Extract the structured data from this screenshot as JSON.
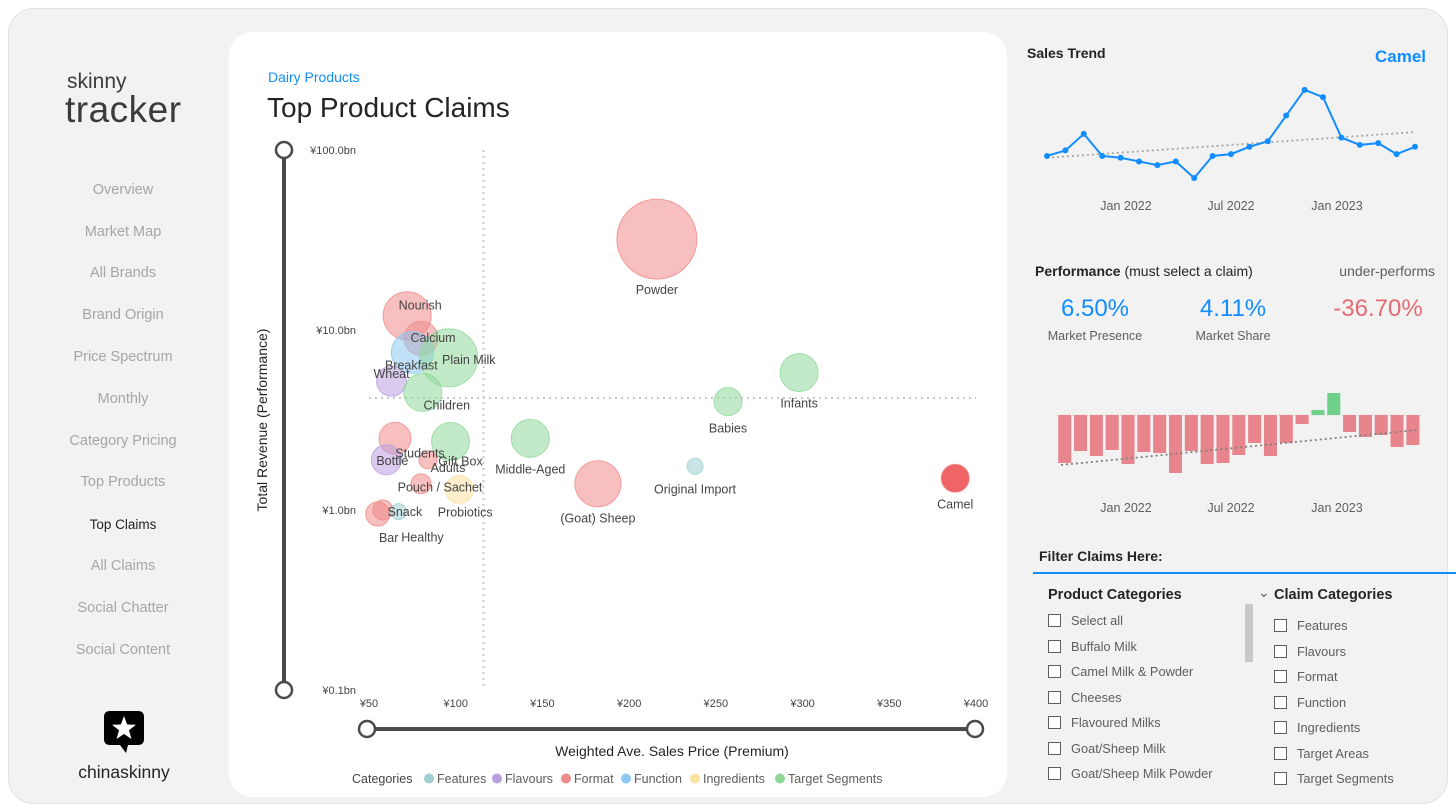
{
  "brand": {
    "logo_line1": "skinny",
    "logo_line2": "tracker",
    "footer_name": "chinaskinny"
  },
  "nav": [
    {
      "label": "Overview"
    },
    {
      "label": "Market Map"
    },
    {
      "label": "All Brands"
    },
    {
      "label": "Brand Origin"
    },
    {
      "label": "Price Spectrum"
    },
    {
      "label": "Monthly"
    },
    {
      "label": "Category Pricing"
    },
    {
      "label": "Top Products"
    },
    {
      "label": "Top Claims",
      "active": true
    },
    {
      "label": "All Claims"
    },
    {
      "label": "Social Chatter"
    },
    {
      "label": "Social Content"
    }
  ],
  "main": {
    "subtitle": "Dairy Products",
    "title": "Top Product Claims"
  },
  "colors": {
    "Features": "#9fcfd0",
    "Flavours": "#b99ee0",
    "Format": "#f08a8a",
    "Function": "#8cc8f2",
    "Ingredients": "#fbe2a0",
    "Target Segments": "#8fd89a",
    "accent": "#118dff",
    "negative": "#e46b73"
  },
  "chart_data": [
    {
      "type": "scatter",
      "title": "",
      "xlabel": "Weighted Ave. Sales Price (Premium)",
      "ylabel": "Total Revenue (Performance)",
      "x_scale": "linear",
      "y_scale": "log",
      "xlim": [
        50,
        400
      ],
      "ylim": [
        0.1,
        100
      ],
      "x_ticks": [
        "¥50",
        "¥100",
        "¥150",
        "¥200",
        "¥250",
        "¥300",
        "¥350",
        "¥400"
      ],
      "y_ticks": [
        "¥100.0bn",
        "¥10.0bn",
        "¥1.0bn",
        "¥0.1bn"
      ],
      "legend_title": "Categories",
      "legend": [
        "Features",
        "Flavours",
        "Format",
        "Function",
        "Ingredients",
        "Target Segments"
      ],
      "points": [
        {
          "label": "Powder",
          "x": 216,
          "y": 32.0,
          "size": 40,
          "category": "Format"
        },
        {
          "label": "Nourish",
          "x": 72,
          "y": 12.0,
          "size": 24,
          "category": "Format"
        },
        {
          "label": "Calcium",
          "x": 80,
          "y": 9.0,
          "size": 17,
          "category": "Format"
        },
        {
          "label": "Breakfast",
          "x": 75,
          "y": 7.5,
          "size": 21,
          "category": "Function"
        },
        {
          "label": "Plain Milk",
          "x": 96,
          "y": 7.0,
          "size": 29,
          "category": "Target Segments"
        },
        {
          "label": "Wheat",
          "x": 63,
          "y": 5.2,
          "size": 15,
          "category": "Flavours"
        },
        {
          "label": "Children",
          "x": 81,
          "y": 4.5,
          "size": 19,
          "category": "Target Segments"
        },
        {
          "label": "Infants",
          "x": 298,
          "y": 5.8,
          "size": 19,
          "category": "Target Segments"
        },
        {
          "label": "Babies",
          "x": 257,
          "y": 4.0,
          "size": 14,
          "category": "Target Segments"
        },
        {
          "label": "Students",
          "x": 65,
          "y": 2.5,
          "size": 16,
          "category": "Format"
        },
        {
          "label": "Gift Box",
          "x": 97,
          "y": 2.4,
          "size": 19,
          "category": "Target Segments"
        },
        {
          "label": "Middle-Aged",
          "x": 143,
          "y": 2.5,
          "size": 19,
          "category": "Target Segments"
        },
        {
          "label": "Bottle",
          "x": 60,
          "y": 1.9,
          "size": 15,
          "category": "Flavours"
        },
        {
          "label": "Adults",
          "x": 84,
          "y": 1.9,
          "size": 9,
          "category": "Format"
        },
        {
          "label": "Original Import",
          "x": 238,
          "y": 1.75,
          "size": 8,
          "category": "Features"
        },
        {
          "label": "Camel",
          "x": 388,
          "y": 1.5,
          "size": 14,
          "category": "Format"
        },
        {
          "label": "Pouch / Sachet",
          "x": 80,
          "y": 1.4,
          "size": 10,
          "category": "Format"
        },
        {
          "label": "(Goat) Sheep",
          "x": 182,
          "y": 1.4,
          "size": 23,
          "category": "Format"
        },
        {
          "label": "Probiotics",
          "x": 102,
          "y": 1.3,
          "size": 14,
          "category": "Ingredients"
        },
        {
          "label": "Snack",
          "x": 58,
          "y": 1.0,
          "size": 10,
          "category": "Format"
        },
        {
          "label": "Bar",
          "x": 55,
          "y": 0.95,
          "size": 12,
          "category": "Format"
        },
        {
          "label": "Healthy",
          "x": 67,
          "y": 0.98,
          "size": 8,
          "category": "Features"
        }
      ]
    },
    {
      "type": "line",
      "title": "Sales Trend",
      "x_ticks": [
        "Jan 2022",
        "Jul 2022",
        "Jan 2023"
      ],
      "series": [
        {
          "values": [
            18,
            21,
            30,
            18,
            17,
            15,
            13,
            15,
            6,
            18,
            19,
            23,
            26,
            40,
            54,
            50,
            28,
            24,
            25,
            19,
            23
          ]
        }
      ],
      "trendline": true
    },
    {
      "type": "bar",
      "title": "Performance",
      "x_ticks": [
        "Jan 2022",
        "Jul 2022",
        "Jan 2023"
      ],
      "values": [
        -4.8,
        -3.6,
        -4.1,
        -3.5,
        -4.9,
        -3.7,
        -3.8,
        -5.8,
        -3.6,
        -4.9,
        -4.8,
        -4.0,
        -2.8,
        -4.1,
        -2.8,
        -0.9,
        0.5,
        2.2,
        -1.7,
        -2.2,
        -2.0,
        -3.2,
        -3.0
      ],
      "trendline": true
    }
  ],
  "sales_trend": {
    "title": "Sales Trend",
    "selection": "Camel"
  },
  "performance": {
    "title": "Performance",
    "note": "(must select a claim)",
    "status": "under-performs",
    "kpis": [
      {
        "value": "6.50%",
        "label": "Market Presence"
      },
      {
        "value": "4.11%",
        "label": "Market Share"
      },
      {
        "value": "-36.70%",
        "label": ""
      }
    ]
  },
  "filters": {
    "title": "Filter Claims Here:",
    "product_categories": {
      "header": "Product Categories",
      "options": [
        "Select all",
        "Buffalo Milk",
        "Camel Milk & Powder",
        "Cheeses",
        "Flavoured Milks",
        "Goat/Sheep Milk",
        "Goat/Sheep Milk Powder"
      ]
    },
    "claim_categories": {
      "header": "Claim Categories",
      "options": [
        "Features",
        "Flavours",
        "Format",
        "Function",
        "Ingredients",
        "Target Areas",
        "Target Segments"
      ]
    }
  }
}
